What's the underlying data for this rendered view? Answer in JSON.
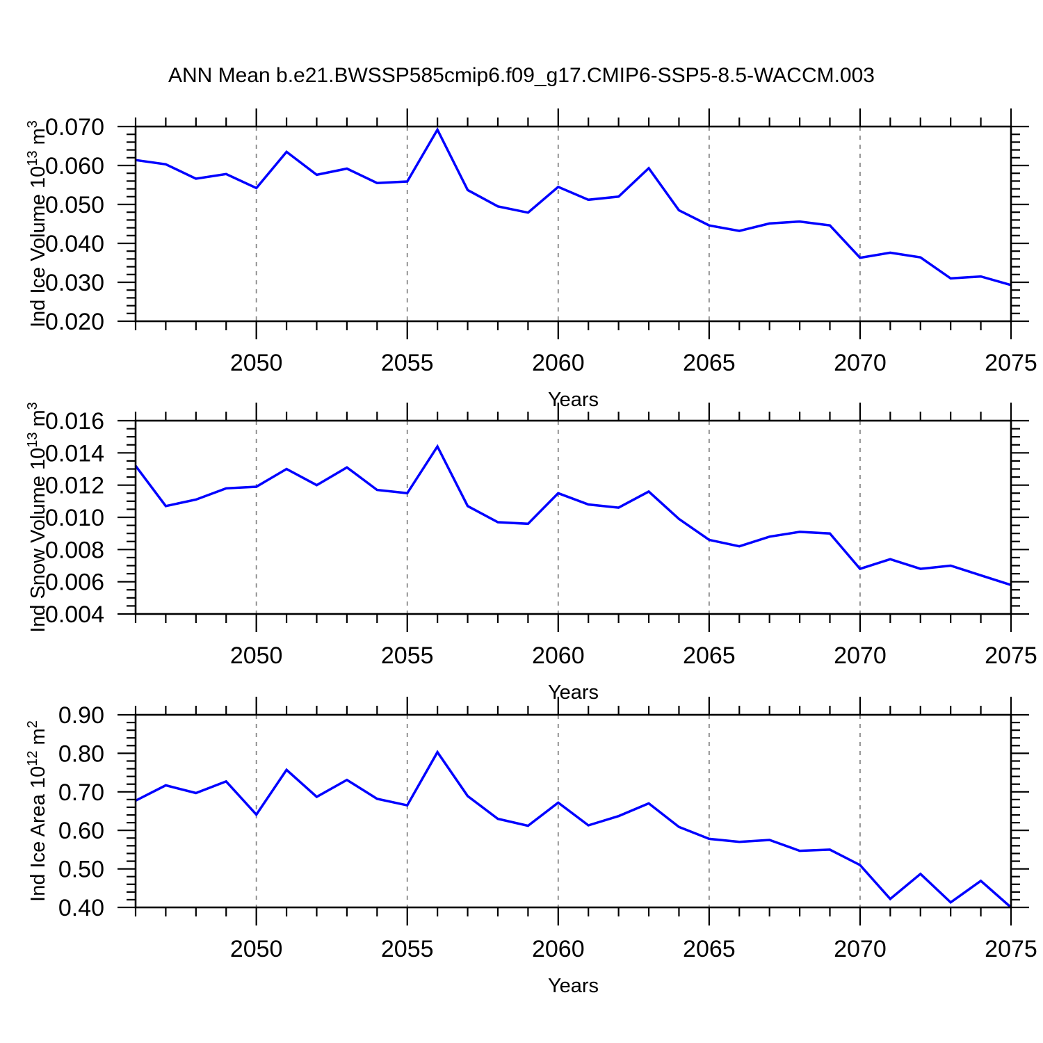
{
  "title": "ANN Mean b.e21.BWSSP585cmip6.f09_g17.CMIP6-SSP5-8.5-WACCM.003",
  "colors": {
    "line": "#0000FF",
    "frame": "#000000",
    "grid": "#888888",
    "background": "#FFFFFF"
  },
  "chart_data": [
    {
      "type": "line",
      "name": "ice-volume",
      "title": "",
      "ylabel_text": "Ind Ice Volume 10^13 m^3",
      "ylabel_parts": [
        [
          "Ind Ice Volume 10",
          false
        ],
        [
          "13",
          true
        ],
        [
          " m",
          false
        ],
        [
          "3",
          true
        ]
      ],
      "xlabel": "Years",
      "x": [
        2046,
        2047,
        2048,
        2049,
        2050,
        2051,
        2052,
        2053,
        2054,
        2055,
        2056,
        2057,
        2058,
        2059,
        2060,
        2061,
        2062,
        2063,
        2064,
        2065,
        2066,
        2067,
        2068,
        2069,
        2070,
        2071,
        2072,
        2073,
        2074,
        2075
      ],
      "values": [
        0.0614,
        0.0603,
        0.0566,
        0.0578,
        0.0542,
        0.0635,
        0.0576,
        0.0592,
        0.0555,
        0.0559,
        0.0692,
        0.0537,
        0.0495,
        0.0479,
        0.0545,
        0.0512,
        0.052,
        0.0593,
        0.0485,
        0.0446,
        0.0432,
        0.0451,
        0.0456,
        0.0446,
        0.0363,
        0.0376,
        0.0364,
        0.031,
        0.0315,
        0.0293
      ],
      "ylim": [
        0.02,
        0.07
      ],
      "ymajor": 0.01,
      "yminor": 0.002,
      "ydecimals": 3,
      "xlim": [
        2046,
        2075
      ],
      "xticks": [
        2050,
        2055,
        2060,
        2065,
        2070,
        2075
      ],
      "xminor_step": 1,
      "grid_years": [
        2050,
        2055,
        2060,
        2065,
        2070
      ],
      "grid": "vertical-dashed",
      "legend": "none"
    },
    {
      "type": "line",
      "name": "snow-volume",
      "title": "",
      "ylabel_text": "Ind Snow Volume 10^13 m^3",
      "ylabel_parts": [
        [
          "Ind Snow Volume 10",
          false
        ],
        [
          "13",
          true
        ],
        [
          " m",
          false
        ],
        [
          "3",
          true
        ]
      ],
      "xlabel": "Years",
      "x": [
        2046,
        2047,
        2048,
        2049,
        2050,
        2051,
        2052,
        2053,
        2054,
        2055,
        2056,
        2057,
        2058,
        2059,
        2060,
        2061,
        2062,
        2063,
        2064,
        2065,
        2066,
        2067,
        2068,
        2069,
        2070,
        2071,
        2072,
        2073,
        2074,
        2075
      ],
      "values": [
        0.0132,
        0.0107,
        0.0111,
        0.0118,
        0.0119,
        0.013,
        0.012,
        0.0131,
        0.0117,
        0.0115,
        0.0144,
        0.0107,
        0.0097,
        0.0096,
        0.0115,
        0.0108,
        0.0106,
        0.0116,
        0.0099,
        0.0086,
        0.0082,
        0.0088,
        0.0091,
        0.009,
        0.0068,
        0.0074,
        0.0068,
        0.007,
        0.0064,
        0.0058
      ],
      "ylim": [
        0.004,
        0.016
      ],
      "ymajor": 0.002,
      "yminor": 0.0005,
      "ydecimals": 3,
      "xlim": [
        2046,
        2075
      ],
      "xticks": [
        2050,
        2055,
        2060,
        2065,
        2070,
        2075
      ],
      "xminor_step": 1,
      "grid_years": [
        2050,
        2055,
        2060,
        2065,
        2070
      ],
      "grid": "vertical-dashed",
      "legend": "none"
    },
    {
      "type": "line",
      "name": "ice-area",
      "title": "",
      "ylabel_text": "Ind Ice Area 10^12 m^2",
      "ylabel_parts": [
        [
          "Ind Ice Area 10",
          false
        ],
        [
          "12",
          true
        ],
        [
          " m",
          false
        ],
        [
          "2",
          true
        ]
      ],
      "xlabel": "Years",
      "x": [
        2046,
        2047,
        2048,
        2049,
        2050,
        2051,
        2052,
        2053,
        2054,
        2055,
        2056,
        2057,
        2058,
        2059,
        2060,
        2061,
        2062,
        2063,
        2064,
        2065,
        2066,
        2067,
        2068,
        2069,
        2070,
        2071,
        2072,
        2073,
        2074,
        2075
      ],
      "values": [
        0.677,
        0.717,
        0.697,
        0.727,
        0.641,
        0.757,
        0.687,
        0.731,
        0.682,
        0.665,
        0.803,
        0.689,
        0.63,
        0.612,
        0.672,
        0.613,
        0.637,
        0.67,
        0.609,
        0.578,
        0.57,
        0.575,
        0.547,
        0.55,
        0.51,
        0.422,
        0.487,
        0.413,
        0.469,
        0.4
      ],
      "ylim": [
        0.4,
        0.9
      ],
      "ymajor": 0.1,
      "yminor": 0.02,
      "ydecimals": 2,
      "xlim": [
        2046,
        2075
      ],
      "xticks": [
        2050,
        2055,
        2060,
        2065,
        2070,
        2075
      ],
      "xminor_step": 1,
      "grid_years": [
        2050,
        2055,
        2060,
        2065,
        2070
      ],
      "grid": "vertical-dashed",
      "legend": "none"
    }
  ]
}
